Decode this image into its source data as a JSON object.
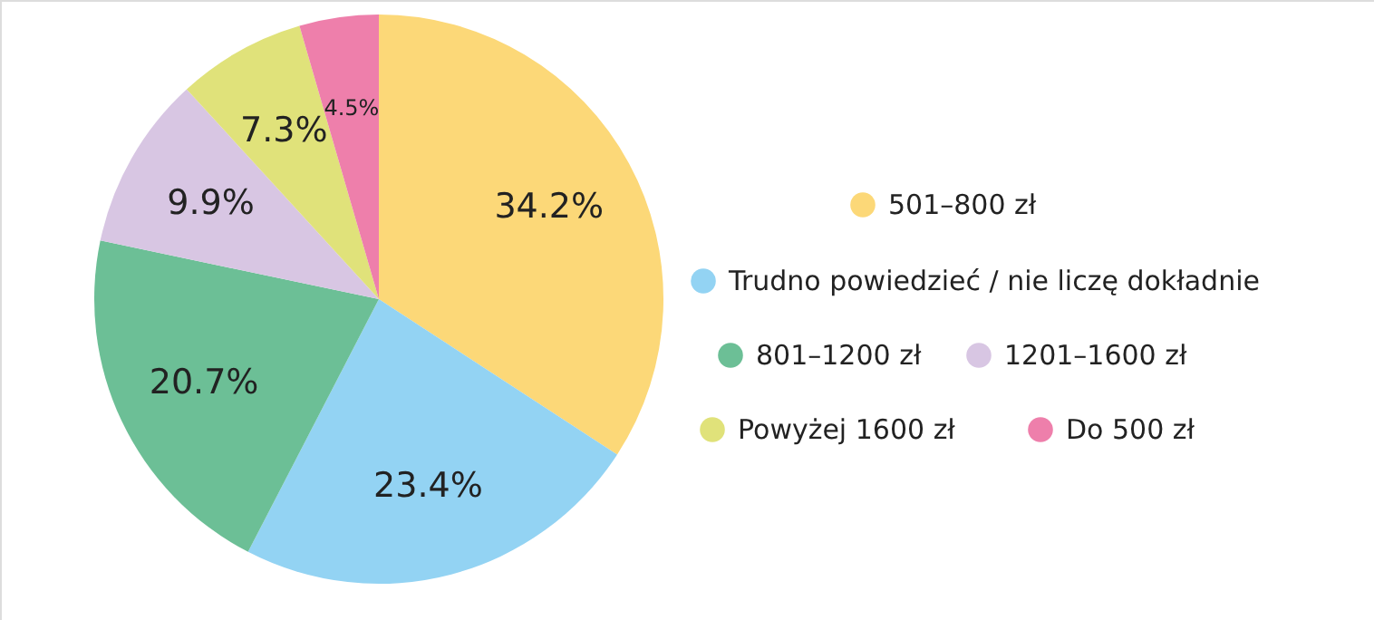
{
  "chart_data": {
    "type": "pie",
    "categories": [
      "501–800 zł",
      "Trudno powiedzieć / nie liczę dokładnie",
      "801–1200 zł",
      "1201–1600 zł",
      "Powyżej 1600 zł",
      "Do 500 zł"
    ],
    "values": [
      34.2,
      23.4,
      20.7,
      9.9,
      7.3,
      4.5
    ],
    "colors": [
      "#fcd878",
      "#93d3f3",
      "#6cbf96",
      "#d8c6e3",
      "#e0e27a",
      "#ee7fab"
    ],
    "value_labels": [
      "34.2%",
      "23.4%",
      "20.7%",
      "9.9%",
      "7.3%",
      "4.5%"
    ],
    "legend": "right"
  }
}
